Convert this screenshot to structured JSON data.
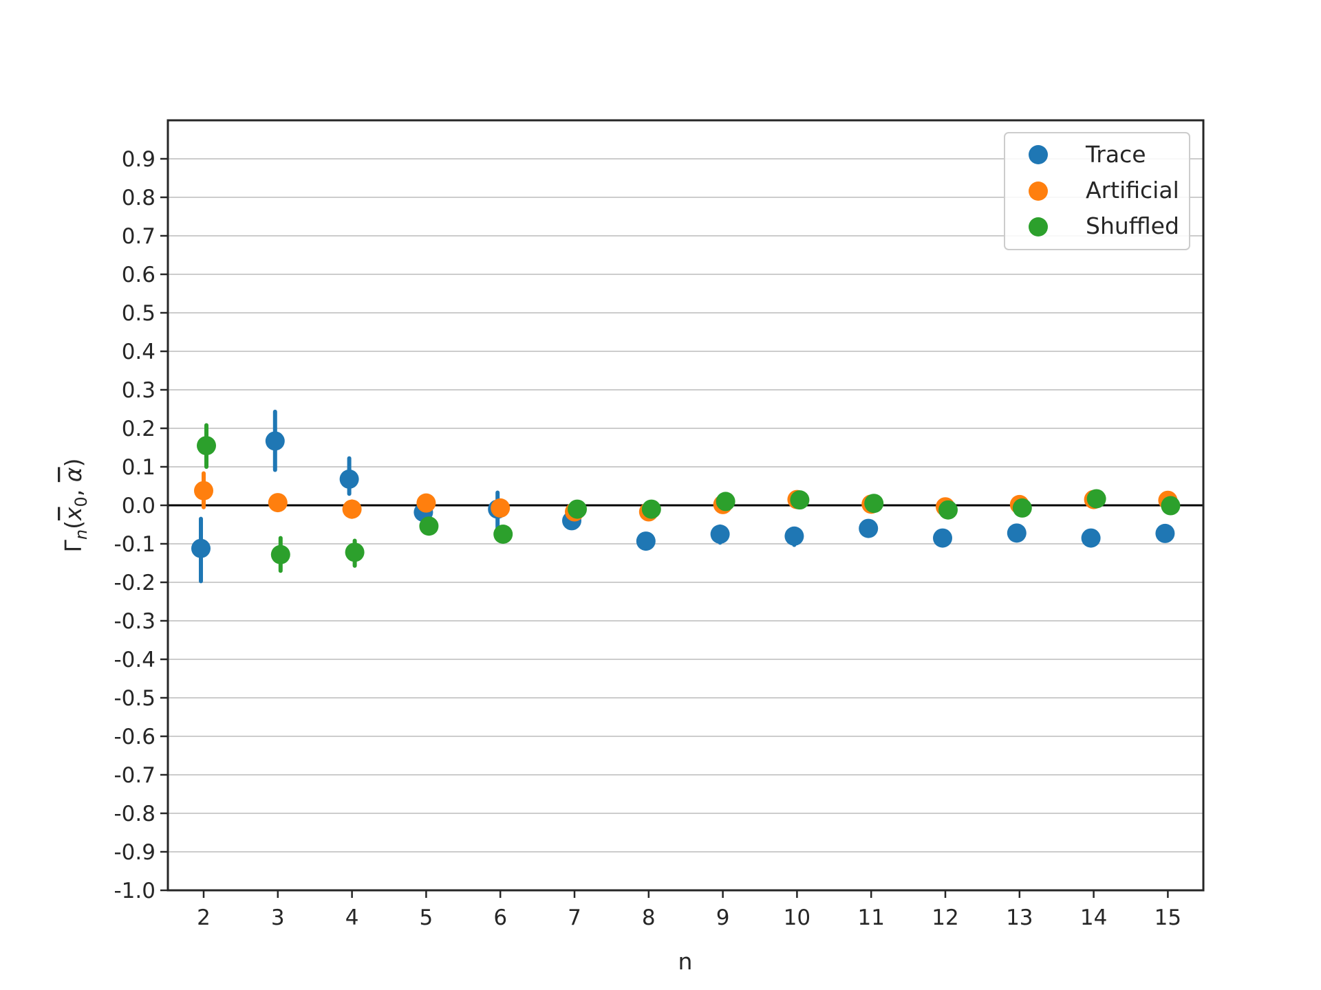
{
  "chart_data": {
    "type": "scatter",
    "title": "",
    "xlabel": "n",
    "ylabel_parts": {
      "main": "Γ",
      "sub": "n",
      "open": "(",
      "x": "x",
      "x_sub": "0",
      "sep": ", ",
      "alpha": "α",
      "close": ")"
    },
    "x": [
      2,
      3,
      4,
      5,
      6,
      7,
      8,
      9,
      10,
      11,
      12,
      13,
      14,
      15
    ],
    "xlim": [
      1.5,
      15.5
    ],
    "ylim": [
      -1.0,
      1.0
    ],
    "ytick_labels": [
      "-1.0",
      "-0.9",
      "-0.8",
      "-0.7",
      "-0.6",
      "-0.5",
      "-0.4",
      "-0.3",
      "-0.2",
      "-0.1",
      "0.0",
      "0.1",
      "0.2",
      "0.3",
      "0.4",
      "0.5",
      "0.6",
      "0.7",
      "0.8",
      "0.9"
    ],
    "ytick_values": [
      -1.0,
      -0.9,
      -0.8,
      -0.7,
      -0.6,
      -0.5,
      -0.4,
      -0.3,
      -0.2,
      -0.1,
      0.0,
      0.1,
      0.2,
      0.3,
      0.4,
      0.5,
      0.6,
      0.7,
      0.8,
      0.9
    ],
    "xtick_labels": [
      "2",
      "3",
      "4",
      "5",
      "6",
      "7",
      "8",
      "9",
      "10",
      "11",
      "12",
      "13",
      "14",
      "15"
    ],
    "grid": "horizontal",
    "zero_line": true,
    "legend_position": "top-right",
    "series": [
      {
        "name": "Trace",
        "color": "#1f77b4",
        "values": [
          -0.112,
          0.167,
          0.068,
          -0.018,
          -0.01,
          -0.04,
          -0.093,
          -0.075,
          -0.08,
          -0.06,
          -0.085,
          -0.072,
          -0.085,
          -0.073
        ],
        "err_low": [
          -0.197,
          0.092,
          0.03,
          -0.025,
          -0.06,
          -0.05,
          -0.1,
          -0.097,
          -0.103,
          -0.065,
          -0.092,
          -0.078,
          -0.09,
          -0.078
        ],
        "err_high": [
          -0.035,
          0.243,
          0.122,
          -0.01,
          0.033,
          -0.03,
          -0.087,
          -0.055,
          -0.062,
          -0.055,
          -0.078,
          -0.066,
          -0.08,
          -0.068
        ]
      },
      {
        "name": "Artificial",
        "color": "#ff7f0e",
        "values": [
          0.038,
          0.007,
          -0.01,
          0.006,
          -0.007,
          -0.017,
          -0.017,
          0.002,
          0.015,
          0.003,
          -0.004,
          0.002,
          0.015,
          0.013
        ],
        "err_low": [
          -0.005,
          -0.01,
          -0.03,
          -0.005,
          -0.015,
          -0.024,
          -0.025,
          -0.005,
          0.008,
          -0.003,
          -0.01,
          -0.005,
          0.008,
          0.006
        ],
        "err_high": [
          0.083,
          0.025,
          0.01,
          0.017,
          0.002,
          -0.01,
          -0.01,
          0.009,
          0.022,
          0.009,
          0.002,
          0.009,
          0.022,
          0.02
        ]
      },
      {
        "name": "Shuffled",
        "color": "#2ca02c",
        "values": [
          0.155,
          -0.128,
          -0.122,
          -0.054,
          -0.075,
          -0.01,
          -0.01,
          0.01,
          0.014,
          0.005,
          -0.012,
          -0.007,
          0.017,
          -0.001
        ],
        "err_low": [
          0.1,
          -0.17,
          -0.157,
          -0.062,
          -0.082,
          -0.016,
          -0.016,
          0.004,
          0.008,
          -0.001,
          -0.018,
          -0.013,
          0.011,
          -0.007
        ],
        "err_high": [
          0.208,
          -0.085,
          -0.092,
          -0.046,
          -0.068,
          -0.004,
          -0.004,
          0.016,
          0.02,
          0.011,
          -0.006,
          -0.001,
          0.023,
          0.005
        ]
      }
    ]
  }
}
